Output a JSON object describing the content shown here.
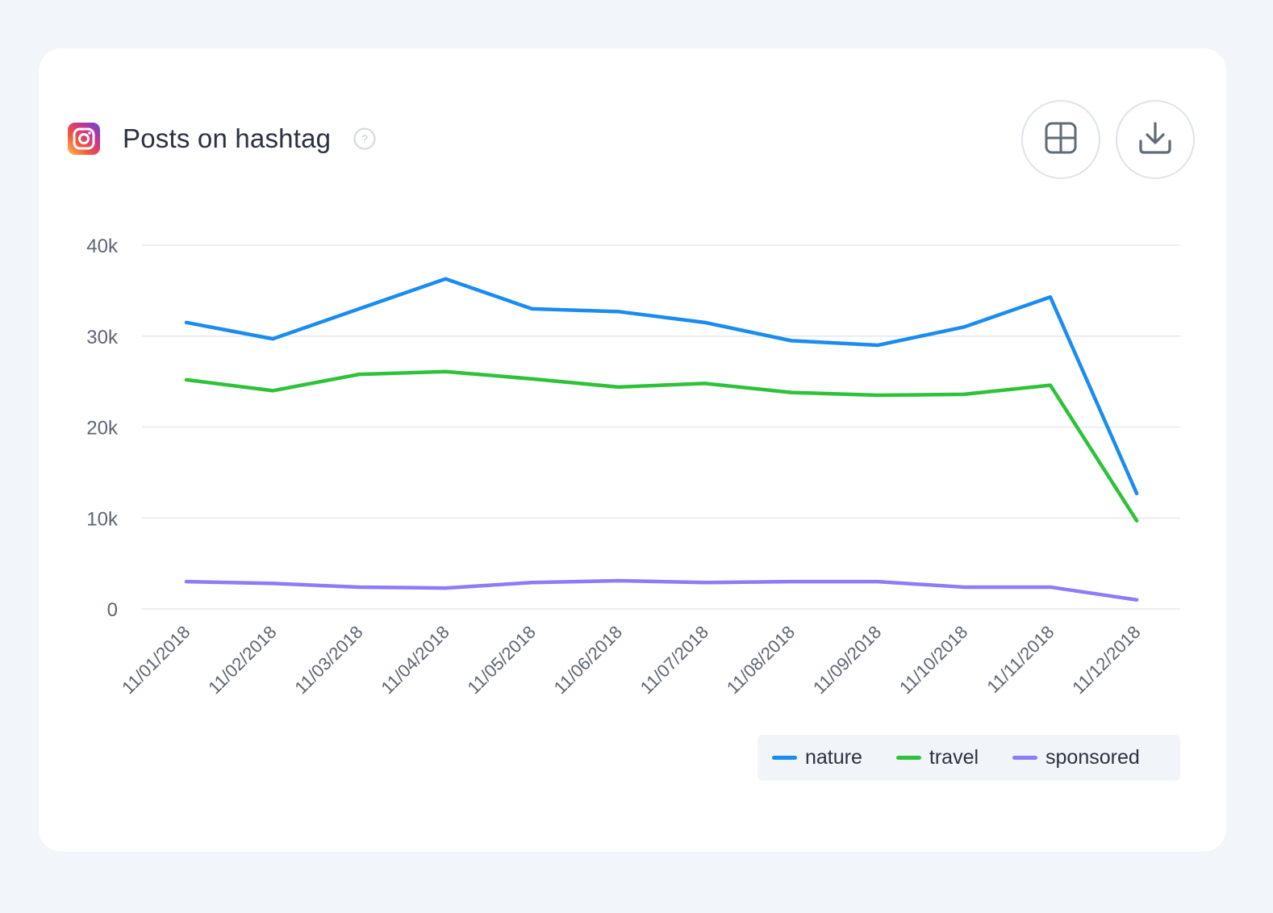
{
  "header": {
    "title": "Posts on hashtag",
    "network_icon": "instagram-icon",
    "help_icon": "question-circle-icon"
  },
  "toolbar": {
    "grid_icon": "grid-icon",
    "download_icon": "download-icon"
  },
  "colors": {
    "nature": "#1a8cf0",
    "travel": "#2ec23a",
    "sponsored": "#8c7cf7",
    "gridline": "#e5e8ed",
    "axis_text": "#5d6573"
  },
  "chart_data": {
    "type": "line",
    "x": [
      "11/01/2018",
      "11/02/2018",
      "11/03/2018",
      "11/04/2018",
      "11/05/2018",
      "11/06/2018",
      "11/07/2018",
      "11/08/2018",
      "11/09/2018",
      "11/10/2018",
      "11/11/2018",
      "11/12/2018"
    ],
    "series": [
      {
        "name": "nature",
        "color": "#1a8cf0",
        "values": [
          31500,
          29700,
          33000,
          36300,
          33000,
          32700,
          31500,
          29500,
          29000,
          31000,
          34300,
          12700
        ]
      },
      {
        "name": "travel",
        "color": "#2ec23a",
        "values": [
          25200,
          24000,
          25800,
          26100,
          25300,
          24400,
          24800,
          23800,
          23500,
          23600,
          24600,
          9700
        ]
      },
      {
        "name": "sponsored",
        "color": "#8c7cf7",
        "values": [
          3000,
          2800,
          2400,
          2300,
          2900,
          3100,
          2900,
          3000,
          3000,
          2400,
          2400,
          1000
        ]
      }
    ],
    "yticks": [
      "0",
      "10k",
      "20k",
      "30k",
      "40k"
    ],
    "ytick_values": [
      0,
      10000,
      20000,
      30000,
      40000
    ],
    "ylim": [
      0,
      40000
    ],
    "grid": true,
    "legend_position": "bottom-right"
  }
}
